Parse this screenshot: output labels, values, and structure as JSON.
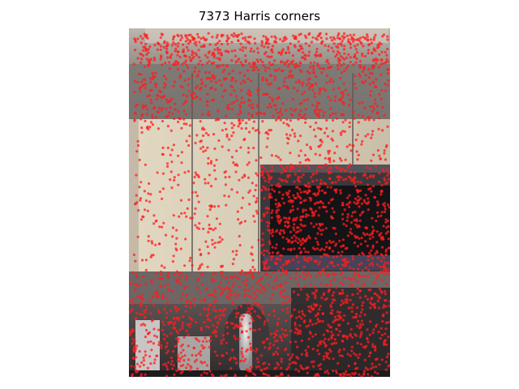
{
  "figure": {
    "title": "7373 Harris corners"
  },
  "overlay": {
    "marker_color": "#ff1e1e",
    "corner_count": 7373
  },
  "photo": {
    "colors": {
      "ceiling": "#6e6a68",
      "upper_cabinet": "#8a8682",
      "cabinet_face": "#ddd3bd",
      "wall_shadow": "#c2b8a4",
      "microwave_frame": "#2b2a2e",
      "microwave_window": "#17161a",
      "counter": "#3a3638",
      "appliance_white": "#d8d4d2"
    }
  }
}
